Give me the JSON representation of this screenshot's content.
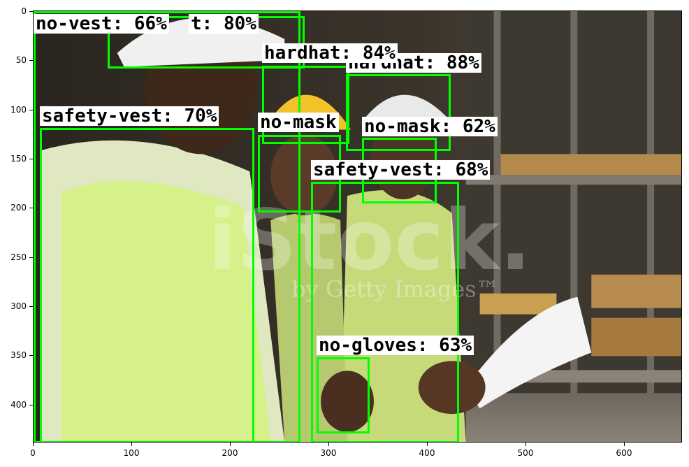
{
  "colors": {
    "box": "#00ff00",
    "label_bg": "#ffffff",
    "label_text": "#000000"
  },
  "axes": {
    "x_ticks": [
      "0",
      "100",
      "200",
      "300",
      "400",
      "500",
      "600"
    ],
    "y_ticks": [
      "0",
      "50",
      "100",
      "150",
      "200",
      "250",
      "300",
      "350",
      "400"
    ]
  },
  "watermark": {
    "brand": "iStock.",
    "sub": "by Getty Images™"
  },
  "detections": [
    {
      "label": "no-vest: 66%"
    },
    {
      "label": "t: 80%"
    },
    {
      "label": "hardhat: 84%"
    },
    {
      "label": "hardhat: 88%"
    },
    {
      "label": "safety-vest: 70%"
    },
    {
      "label": "no-mask"
    },
    {
      "label": "no-mask: 62%"
    },
    {
      "label": "safety-vest: 68%"
    },
    {
      "label": "no-gloves: 63%"
    }
  ]
}
